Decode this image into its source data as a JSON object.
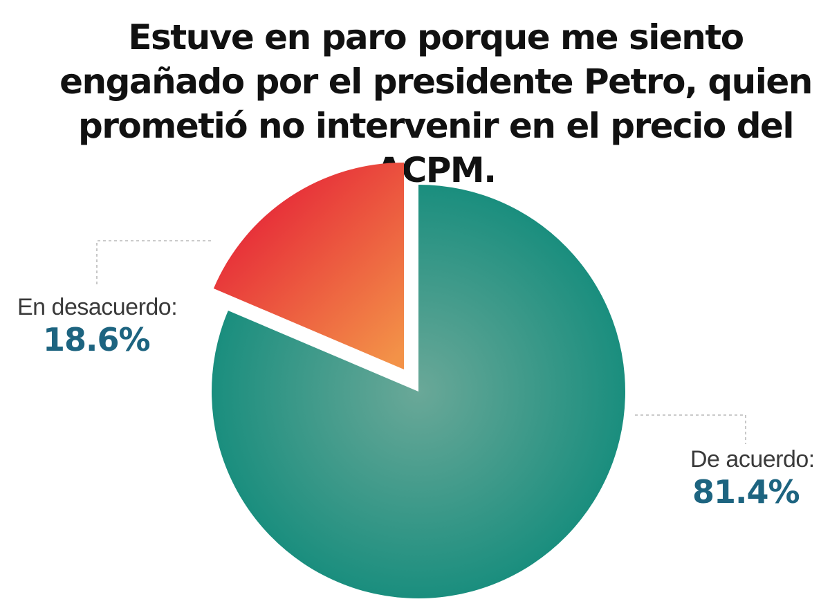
{
  "chart_data": {
    "type": "pie",
    "title": "Estuve en paro porque me siento engañado por el presidente Petro, quien prometió no intervenir en el precio del ACPM.",
    "slices": [
      {
        "label": "En desacuerdo:",
        "value": 18.6,
        "value_label": "18.6%",
        "color_start": "#e41b36",
        "color_end": "#f39248",
        "exploded": true
      },
      {
        "label": "De acuerdo:",
        "value": 81.4,
        "value_label": "81.4%",
        "color_center": "#6aa898",
        "color_edge": "#1a8e7e",
        "exploded": false
      }
    ],
    "value_text_color": "#1d6480",
    "leader_line_color": "#b9b9b9",
    "legend": "none"
  }
}
